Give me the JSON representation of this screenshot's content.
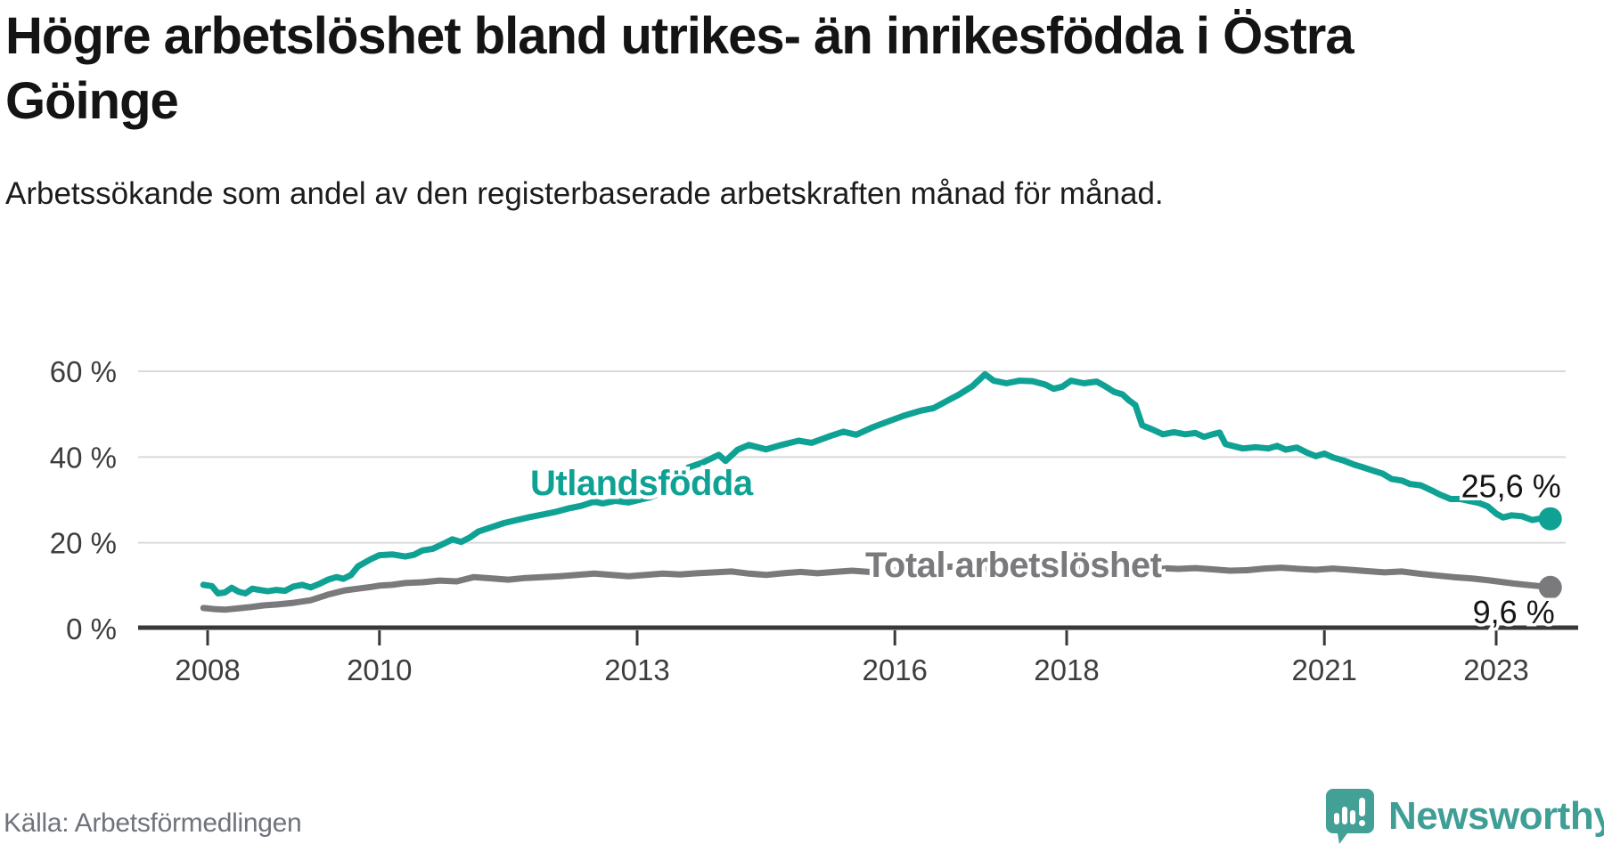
{
  "header": {
    "title": "Högre arbetslöshet bland utrikes- än inrikesfödda i Östra Göinge",
    "subtitle": "Arbetssökande som andel av den registerbaserade arbetskraften månad för månad."
  },
  "footer": {
    "source": "Källa: Arbetsförmedlingen",
    "brand": "Newsworthy"
  },
  "colors": {
    "foreign_born_line": "#0fa294",
    "total_line": "#7a7a7d",
    "axis": "#383838",
    "gridline": "#dadada",
    "tick_text": "#3d3d3d",
    "annotation_text": "#141414",
    "logo_teal": "#43a097"
  },
  "chart_data": {
    "type": "line",
    "title": "Högre arbetslöshet bland utrikes- än inrikesfödda i Östra Göinge",
    "subtitle": "Arbetssökande som andel av den registerbaserade arbetskraften månad för månad.",
    "source": "Källa: Arbetsförmedlingen",
    "xlabel": "",
    "ylabel": "",
    "grid": true,
    "legend_position": "inline-labels",
    "xlim": [
      2007.85,
      2024.1
    ],
    "ylim": [
      0,
      62
    ],
    "x_ticks": [
      2008,
      2010,
      2013,
      2016,
      2018,
      2021,
      2023
    ],
    "y_ticks": [
      {
        "value": 0,
        "label": "0 %"
      },
      {
        "value": 20,
        "label": "20 %"
      },
      {
        "value": 40,
        "label": "40 %"
      },
      {
        "value": 60,
        "label": "60 %"
      }
    ],
    "series": [
      {
        "name": "Utlandsfödda",
        "color": "#0fa294",
        "end_label": "25,6 %",
        "end_value": 25.6,
        "name_label_pos": {
          "x": 2013.05,
          "y": 34.0
        },
        "points": [
          [
            2007.95,
            10.2
          ],
          [
            2008.05,
            9.9
          ],
          [
            2008.12,
            8.2
          ],
          [
            2008.2,
            8.4
          ],
          [
            2008.28,
            9.5
          ],
          [
            2008.36,
            8.6
          ],
          [
            2008.44,
            8.2
          ],
          [
            2008.52,
            9.3
          ],
          [
            2008.6,
            9.0
          ],
          [
            2008.7,
            8.7
          ],
          [
            2008.8,
            9.0
          ],
          [
            2008.9,
            8.8
          ],
          [
            2009.0,
            9.8
          ],
          [
            2009.1,
            10.2
          ],
          [
            2009.2,
            9.6
          ],
          [
            2009.3,
            10.4
          ],
          [
            2009.4,
            11.4
          ],
          [
            2009.5,
            12.0
          ],
          [
            2009.58,
            11.6
          ],
          [
            2009.67,
            12.5
          ],
          [
            2009.75,
            14.5
          ],
          [
            2009.9,
            16.2
          ],
          [
            2010.0,
            17.1
          ],
          [
            2010.15,
            17.3
          ],
          [
            2010.3,
            16.8
          ],
          [
            2010.4,
            17.2
          ],
          [
            2010.5,
            18.2
          ],
          [
            2010.62,
            18.6
          ],
          [
            2010.75,
            19.8
          ],
          [
            2010.85,
            20.8
          ],
          [
            2010.95,
            20.2
          ],
          [
            2011.05,
            21.2
          ],
          [
            2011.15,
            22.6
          ],
          [
            2011.3,
            23.6
          ],
          [
            2011.45,
            24.6
          ],
          [
            2011.6,
            25.3
          ],
          [
            2011.75,
            26.0
          ],
          [
            2011.9,
            26.6
          ],
          [
            2012.05,
            27.2
          ],
          [
            2012.2,
            28.0
          ],
          [
            2012.35,
            28.6
          ],
          [
            2012.5,
            29.6
          ],
          [
            2012.6,
            29.2
          ],
          [
            2012.75,
            29.8
          ],
          [
            2012.9,
            29.4
          ],
          [
            2013.0,
            29.9
          ],
          [
            2013.15,
            30.6
          ],
          [
            2013.3,
            31.8
          ],
          [
            2013.45,
            33.4
          ],
          [
            2013.6,
            37.6
          ],
          [
            2013.75,
            38.6
          ],
          [
            2013.95,
            40.5
          ],
          [
            2014.03,
            39.1
          ],
          [
            2014.17,
            41.7
          ],
          [
            2014.3,
            42.8
          ],
          [
            2014.5,
            41.8
          ],
          [
            2014.68,
            42.8
          ],
          [
            2014.88,
            43.8
          ],
          [
            2015.03,
            43.3
          ],
          [
            2015.25,
            44.9
          ],
          [
            2015.4,
            45.9
          ],
          [
            2015.55,
            45.2
          ],
          [
            2015.75,
            47.0
          ],
          [
            2015.95,
            48.5
          ],
          [
            2016.1,
            49.6
          ],
          [
            2016.3,
            50.8
          ],
          [
            2016.45,
            51.4
          ],
          [
            2016.6,
            53.0
          ],
          [
            2016.75,
            54.6
          ],
          [
            2016.9,
            56.5
          ],
          [
            2017.05,
            59.3
          ],
          [
            2017.15,
            57.8
          ],
          [
            2017.3,
            57.2
          ],
          [
            2017.45,
            57.8
          ],
          [
            2017.6,
            57.7
          ],
          [
            2017.75,
            56.9
          ],
          [
            2017.85,
            55.9
          ],
          [
            2017.95,
            56.4
          ],
          [
            2018.05,
            57.8
          ],
          [
            2018.2,
            57.2
          ],
          [
            2018.35,
            57.6
          ],
          [
            2018.45,
            56.5
          ],
          [
            2018.55,
            55.2
          ],
          [
            2018.65,
            54.6
          ],
          [
            2018.72,
            53.3
          ],
          [
            2018.8,
            52.1
          ],
          [
            2018.88,
            47.4
          ],
          [
            2019.0,
            46.4
          ],
          [
            2019.12,
            45.3
          ],
          [
            2019.25,
            45.8
          ],
          [
            2019.38,
            45.3
          ],
          [
            2019.5,
            45.6
          ],
          [
            2019.6,
            44.7
          ],
          [
            2019.7,
            45.3
          ],
          [
            2019.78,
            45.7
          ],
          [
            2019.85,
            43.0
          ],
          [
            2019.95,
            42.5
          ],
          [
            2020.05,
            42.0
          ],
          [
            2020.2,
            42.3
          ],
          [
            2020.35,
            42.0
          ],
          [
            2020.45,
            42.6
          ],
          [
            2020.55,
            41.7
          ],
          [
            2020.68,
            42.2
          ],
          [
            2020.8,
            41.0
          ],
          [
            2020.9,
            40.2
          ],
          [
            2021.0,
            40.8
          ],
          [
            2021.1,
            39.9
          ],
          [
            2021.22,
            39.2
          ],
          [
            2021.35,
            38.2
          ],
          [
            2021.45,
            37.6
          ],
          [
            2021.57,
            36.8
          ],
          [
            2021.68,
            36.1
          ],
          [
            2021.78,
            34.9
          ],
          [
            2021.9,
            34.5
          ],
          [
            2022.0,
            33.7
          ],
          [
            2022.12,
            33.4
          ],
          [
            2022.25,
            32.2
          ],
          [
            2022.35,
            31.2
          ],
          [
            2022.47,
            30.2
          ],
          [
            2022.58,
            30.2
          ],
          [
            2022.7,
            29.7
          ],
          [
            2022.8,
            29.3
          ],
          [
            2022.9,
            28.5
          ],
          [
            2023.0,
            26.8
          ],
          [
            2023.08,
            25.9
          ],
          [
            2023.18,
            26.4
          ],
          [
            2023.3,
            26.2
          ],
          [
            2023.42,
            25.3
          ],
          [
            2023.5,
            25.6
          ],
          [
            2023.58,
            25.9
          ],
          [
            2023.63,
            25.6
          ]
        ]
      },
      {
        "name": "Total arbetslöshet",
        "color": "#7a7a7d",
        "end_label": "9,6 %",
        "end_value": 9.6,
        "name_label_pos": {
          "x": 2017.38,
          "y": 14.9
        },
        "points": [
          [
            2007.95,
            4.8
          ],
          [
            2008.1,
            4.5
          ],
          [
            2008.2,
            4.4
          ],
          [
            2008.35,
            4.7
          ],
          [
            2008.5,
            5.0
          ],
          [
            2008.65,
            5.4
          ],
          [
            2008.8,
            5.6
          ],
          [
            2009.0,
            6.0
          ],
          [
            2009.2,
            6.6
          ],
          [
            2009.4,
            7.9
          ],
          [
            2009.6,
            8.9
          ],
          [
            2009.75,
            9.3
          ],
          [
            2009.9,
            9.7
          ],
          [
            2010.0,
            10.0
          ],
          [
            2010.15,
            10.2
          ],
          [
            2010.3,
            10.6
          ],
          [
            2010.5,
            10.8
          ],
          [
            2010.7,
            11.2
          ],
          [
            2010.9,
            11.0
          ],
          [
            2011.1,
            12.0
          ],
          [
            2011.3,
            11.7
          ],
          [
            2011.5,
            11.4
          ],
          [
            2011.7,
            11.8
          ],
          [
            2011.9,
            12.0
          ],
          [
            2012.1,
            12.2
          ],
          [
            2012.3,
            12.5
          ],
          [
            2012.5,
            12.8
          ],
          [
            2012.7,
            12.5
          ],
          [
            2012.9,
            12.2
          ],
          [
            2013.1,
            12.5
          ],
          [
            2013.3,
            12.8
          ],
          [
            2013.5,
            12.6
          ],
          [
            2013.7,
            12.9
          ],
          [
            2013.9,
            13.1
          ],
          [
            2014.1,
            13.3
          ],
          [
            2014.3,
            12.8
          ],
          [
            2014.5,
            12.5
          ],
          [
            2014.7,
            12.9
          ],
          [
            2014.9,
            13.2
          ],
          [
            2015.1,
            12.9
          ],
          [
            2015.3,
            13.2
          ],
          [
            2015.5,
            13.5
          ],
          [
            2015.7,
            13.2
          ],
          [
            2015.9,
            13.4
          ],
          [
            2016.1,
            13.8
          ],
          [
            2016.3,
            14.1
          ],
          [
            2016.5,
            14.3
          ],
          [
            2016.7,
            14.5
          ],
          [
            2016.9,
            14.2
          ],
          [
            2017.1,
            14.0
          ],
          [
            2017.3,
            14.3
          ],
          [
            2017.5,
            14.5
          ],
          [
            2017.7,
            14.2
          ],
          [
            2017.9,
            14.4
          ],
          [
            2018.1,
            14.5
          ],
          [
            2018.3,
            14.2
          ],
          [
            2018.5,
            14.4
          ],
          [
            2018.7,
            14.2
          ],
          [
            2018.9,
            14.5
          ],
          [
            2019.1,
            14.1
          ],
          [
            2019.3,
            13.9
          ],
          [
            2019.5,
            14.1
          ],
          [
            2019.7,
            13.8
          ],
          [
            2019.9,
            13.5
          ],
          [
            2020.1,
            13.6
          ],
          [
            2020.3,
            14.0
          ],
          [
            2020.5,
            14.2
          ],
          [
            2020.7,
            13.9
          ],
          [
            2020.9,
            13.7
          ],
          [
            2021.1,
            14.0
          ],
          [
            2021.3,
            13.7
          ],
          [
            2021.5,
            13.4
          ],
          [
            2021.7,
            13.1
          ],
          [
            2021.9,
            13.3
          ],
          [
            2022.1,
            12.8
          ],
          [
            2022.3,
            12.4
          ],
          [
            2022.5,
            12.0
          ],
          [
            2022.7,
            11.7
          ],
          [
            2022.9,
            11.3
          ],
          [
            2023.05,
            10.9
          ],
          [
            2023.2,
            10.5
          ],
          [
            2023.35,
            10.2
          ],
          [
            2023.5,
            9.9
          ],
          [
            2023.63,
            9.6
          ]
        ]
      }
    ]
  }
}
